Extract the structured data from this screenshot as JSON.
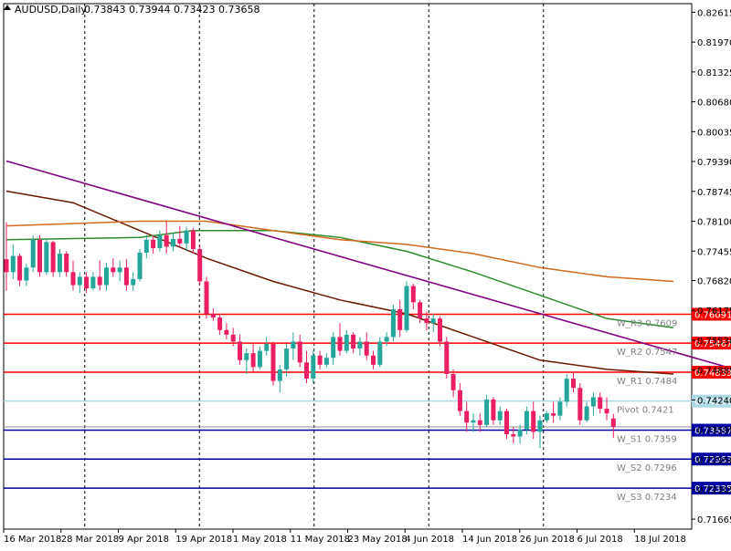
{
  "header": {
    "symbol": "AUDUSD,Daily",
    "ohlc": "0.73843 0.73944 0.73423 0.73658"
  },
  "colors": {
    "background": "#ffffff",
    "bull_candle": "#26a69a",
    "bear_candle": "#e91e63",
    "resistance": "#ff0000",
    "support": "#0000a0",
    "pivot": "#add8e6",
    "trendline": "#800080",
    "ma_fast": "#6b1a00",
    "ma_mid": "#2e8b2e",
    "ma_slow": "#d2691e",
    "grid": "#000000",
    "axis_text": "#000000",
    "level_text": "#808080",
    "current_price": "#808080"
  },
  "chart_data": {
    "type": "candlestick",
    "symbol": "AUDUSD",
    "timeframe": "Daily",
    "ohlc_last": {
      "open": 0.73843,
      "high": 0.73944,
      "low": 0.73423,
      "close": 0.73658
    },
    "y_axis_ticks": [
      "0.82615",
      "0.81970",
      "0.81325",
      "0.80680",
      "0.80035",
      "0.79390",
      "0.78745",
      "0.78100",
      "0.77455",
      "0.76820",
      "0.76175",
      "0.75530",
      "0.74885",
      "0.74240",
      "0.73595",
      "0.72950",
      "0.72305",
      "0.71665"
    ],
    "x_axis_ticks": [
      "16 Mar 2018",
      "28 Mar 2018",
      "9 Apr 2018",
      "19 Apr 2018",
      "1 May 2018",
      "11 May 2018",
      "23 May 2018",
      "4 Jun 2018",
      "14 Jun 2018",
      "26 Jun 2018",
      "6 Jul 2018",
      "18 Jul 2018"
    ],
    "ylim": [
      0.7145,
      0.828
    ],
    "grid": "vertical-dashed",
    "levels": [
      {
        "name": "W_R3",
        "label": "W_R3 0.7609",
        "value": 0.76091,
        "price_label": "0.76091",
        "kind": "resistance"
      },
      {
        "name": "W_R2",
        "label": "W_R2 0.7547",
        "value": 0.75467,
        "price_label": "0.75467",
        "kind": "resistance"
      },
      {
        "name": "W_R1",
        "label": "W_R1 0.7484",
        "value": 0.74839,
        "price_label": "0.74839",
        "kind": "resistance"
      },
      {
        "name": "Pivot",
        "label": "Pivot 0.7421",
        "value": 0.74215,
        "price_label": "0.74215",
        "kind": "pivot"
      },
      {
        "name": "W_S1",
        "label": "W_S1 0.7359",
        "value": 0.73587,
        "price_label": "0.73587",
        "kind": "support"
      },
      {
        "name": "W_S2",
        "label": "W_S2 0.7296",
        "value": 0.72963,
        "price_label": "0.72963",
        "kind": "support"
      },
      {
        "name": "W_S3",
        "label": "W_S3 0.7234",
        "value": 0.72335,
        "price_label": "0.72335",
        "kind": "support"
      }
    ],
    "current_price": 0.73658,
    "candles": [
      {
        "o": 0.7728,
        "h": 0.7808,
        "l": 0.766,
        "c": 0.77
      },
      {
        "o": 0.77,
        "h": 0.776,
        "l": 0.7685,
        "c": 0.7735
      },
      {
        "o": 0.7735,
        "h": 0.774,
        "l": 0.767,
        "c": 0.7682
      },
      {
        "o": 0.7682,
        "h": 0.7718,
        "l": 0.767,
        "c": 0.771
      },
      {
        "o": 0.771,
        "h": 0.778,
        "l": 0.77,
        "c": 0.777
      },
      {
        "o": 0.777,
        "h": 0.778,
        "l": 0.769,
        "c": 0.77
      },
      {
        "o": 0.77,
        "h": 0.7772,
        "l": 0.7695,
        "c": 0.7765
      },
      {
        "o": 0.7765,
        "h": 0.7768,
        "l": 0.769,
        "c": 0.77
      },
      {
        "o": 0.77,
        "h": 0.775,
        "l": 0.769,
        "c": 0.774
      },
      {
        "o": 0.774,
        "h": 0.7745,
        "l": 0.769,
        "c": 0.77
      },
      {
        "o": 0.77,
        "h": 0.7725,
        "l": 0.766,
        "c": 0.7672
      },
      {
        "o": 0.7672,
        "h": 0.77,
        "l": 0.7655,
        "c": 0.769
      },
      {
        "o": 0.769,
        "h": 0.77,
        "l": 0.7655,
        "c": 0.7665
      },
      {
        "o": 0.7665,
        "h": 0.77,
        "l": 0.766,
        "c": 0.769
      },
      {
        "o": 0.769,
        "h": 0.7725,
        "l": 0.766,
        "c": 0.7672
      },
      {
        "o": 0.7672,
        "h": 0.772,
        "l": 0.766,
        "c": 0.771
      },
      {
        "o": 0.771,
        "h": 0.773,
        "l": 0.769,
        "c": 0.77
      },
      {
        "o": 0.77,
        "h": 0.7725,
        "l": 0.768,
        "c": 0.771
      },
      {
        "o": 0.771,
        "h": 0.7728,
        "l": 0.766,
        "c": 0.7672
      },
      {
        "o": 0.7672,
        "h": 0.77,
        "l": 0.766,
        "c": 0.7685
      },
      {
        "o": 0.7685,
        "h": 0.775,
        "l": 0.768,
        "c": 0.7742
      },
      {
        "o": 0.7742,
        "h": 0.778,
        "l": 0.773,
        "c": 0.777
      },
      {
        "o": 0.777,
        "h": 0.778,
        "l": 0.774,
        "c": 0.7752
      },
      {
        "o": 0.7752,
        "h": 0.779,
        "l": 0.7745,
        "c": 0.778
      },
      {
        "o": 0.778,
        "h": 0.781,
        "l": 0.774,
        "c": 0.7755
      },
      {
        "o": 0.7755,
        "h": 0.7785,
        "l": 0.7745,
        "c": 0.7772
      },
      {
        "o": 0.7772,
        "h": 0.78,
        "l": 0.7755,
        "c": 0.7762
      },
      {
        "o": 0.7762,
        "h": 0.7798,
        "l": 0.7745,
        "c": 0.779
      },
      {
        "o": 0.779,
        "h": 0.7795,
        "l": 0.774,
        "c": 0.775
      },
      {
        "o": 0.775,
        "h": 0.776,
        "l": 0.7672,
        "c": 0.768
      },
      {
        "o": 0.768,
        "h": 0.769,
        "l": 0.76,
        "c": 0.761
      },
      {
        "o": 0.761,
        "h": 0.7622,
        "l": 0.7595,
        "c": 0.7602
      },
      {
        "o": 0.7602,
        "h": 0.761,
        "l": 0.7565,
        "c": 0.7575
      },
      {
        "o": 0.7575,
        "h": 0.759,
        "l": 0.7555,
        "c": 0.7565
      },
      {
        "o": 0.7565,
        "h": 0.758,
        "l": 0.754,
        "c": 0.755
      },
      {
        "o": 0.755,
        "h": 0.7565,
        "l": 0.75,
        "c": 0.751
      },
      {
        "o": 0.751,
        "h": 0.7535,
        "l": 0.748,
        "c": 0.7525
      },
      {
        "o": 0.7525,
        "h": 0.7545,
        "l": 0.7485,
        "c": 0.7495
      },
      {
        "o": 0.7495,
        "h": 0.754,
        "l": 0.749,
        "c": 0.753
      },
      {
        "o": 0.753,
        "h": 0.756,
        "l": 0.752,
        "c": 0.7545
      },
      {
        "o": 0.7545,
        "h": 0.755,
        "l": 0.7455,
        "c": 0.7465
      },
      {
        "o": 0.7465,
        "h": 0.75,
        "l": 0.744,
        "c": 0.749
      },
      {
        "o": 0.749,
        "h": 0.7545,
        "l": 0.7475,
        "c": 0.7535
      },
      {
        "o": 0.7535,
        "h": 0.757,
        "l": 0.751,
        "c": 0.755
      },
      {
        "o": 0.755,
        "h": 0.7565,
        "l": 0.7495,
        "c": 0.7505
      },
      {
        "o": 0.7505,
        "h": 0.753,
        "l": 0.746,
        "c": 0.747
      },
      {
        "o": 0.747,
        "h": 0.753,
        "l": 0.746,
        "c": 0.752
      },
      {
        "o": 0.752,
        "h": 0.753,
        "l": 0.749,
        "c": 0.75
      },
      {
        "o": 0.75,
        "h": 0.7525,
        "l": 0.7495,
        "c": 0.7515
      },
      {
        "o": 0.7515,
        "h": 0.757,
        "l": 0.75,
        "c": 0.756
      },
      {
        "o": 0.756,
        "h": 0.759,
        "l": 0.752,
        "c": 0.753
      },
      {
        "o": 0.753,
        "h": 0.7575,
        "l": 0.7525,
        "c": 0.7565
      },
      {
        "o": 0.7565,
        "h": 0.757,
        "l": 0.7525,
        "c": 0.7535
      },
      {
        "o": 0.7535,
        "h": 0.756,
        "l": 0.752,
        "c": 0.755
      },
      {
        "o": 0.755,
        "h": 0.757,
        "l": 0.751,
        "c": 0.752
      },
      {
        "o": 0.752,
        "h": 0.753,
        "l": 0.749,
        "c": 0.75
      },
      {
        "o": 0.75,
        "h": 0.756,
        "l": 0.7495,
        "c": 0.755
      },
      {
        "o": 0.755,
        "h": 0.757,
        "l": 0.754,
        "c": 0.756
      },
      {
        "o": 0.756,
        "h": 0.763,
        "l": 0.755,
        "c": 0.762
      },
      {
        "o": 0.762,
        "h": 0.764,
        "l": 0.756,
        "c": 0.7575
      },
      {
        "o": 0.7575,
        "h": 0.768,
        "l": 0.757,
        "c": 0.767
      },
      {
        "o": 0.767,
        "h": 0.7675,
        "l": 0.762,
        "c": 0.7635
      },
      {
        "o": 0.7635,
        "h": 0.764,
        "l": 0.759,
        "c": 0.76
      },
      {
        "o": 0.76,
        "h": 0.7615,
        "l": 0.7575,
        "c": 0.759
      },
      {
        "o": 0.759,
        "h": 0.761,
        "l": 0.757,
        "c": 0.76
      },
      {
        "o": 0.76,
        "h": 0.7605,
        "l": 0.754,
        "c": 0.755
      },
      {
        "o": 0.755,
        "h": 0.756,
        "l": 0.747,
        "c": 0.748
      },
      {
        "o": 0.748,
        "h": 0.749,
        "l": 0.743,
        "c": 0.7445
      },
      {
        "o": 0.7445,
        "h": 0.746,
        "l": 0.739,
        "c": 0.74
      },
      {
        "o": 0.74,
        "h": 0.742,
        "l": 0.7355,
        "c": 0.7375
      },
      {
        "o": 0.7375,
        "h": 0.7395,
        "l": 0.7355,
        "c": 0.738
      },
      {
        "o": 0.738,
        "h": 0.7395,
        "l": 0.7355,
        "c": 0.737
      },
      {
        "o": 0.737,
        "h": 0.7435,
        "l": 0.7365,
        "c": 0.7425
      },
      {
        "o": 0.7425,
        "h": 0.743,
        "l": 0.737,
        "c": 0.738
      },
      {
        "o": 0.738,
        "h": 0.741,
        "l": 0.737,
        "c": 0.74
      },
      {
        "o": 0.74,
        "h": 0.7405,
        "l": 0.734,
        "c": 0.735
      },
      {
        "o": 0.735,
        "h": 0.7365,
        "l": 0.733,
        "c": 0.7345
      },
      {
        "o": 0.7345,
        "h": 0.737,
        "l": 0.733,
        "c": 0.736
      },
      {
        "o": 0.736,
        "h": 0.741,
        "l": 0.735,
        "c": 0.74
      },
      {
        "o": 0.74,
        "h": 0.742,
        "l": 0.734,
        "c": 0.7355
      },
      {
        "o": 0.7355,
        "h": 0.739,
        "l": 0.732,
        "c": 0.738
      },
      {
        "o": 0.738,
        "h": 0.74,
        "l": 0.7375,
        "c": 0.7395
      },
      {
        "o": 0.7395,
        "h": 0.742,
        "l": 0.7375,
        "c": 0.739
      },
      {
        "o": 0.739,
        "h": 0.743,
        "l": 0.738,
        "c": 0.742
      },
      {
        "o": 0.742,
        "h": 0.748,
        "l": 0.741,
        "c": 0.747
      },
      {
        "o": 0.747,
        "h": 0.7485,
        "l": 0.744,
        "c": 0.745
      },
      {
        "o": 0.745,
        "h": 0.746,
        "l": 0.737,
        "c": 0.738
      },
      {
        "o": 0.738,
        "h": 0.742,
        "l": 0.7375,
        "c": 0.741
      },
      {
        "o": 0.741,
        "h": 0.744,
        "l": 0.739,
        "c": 0.743
      },
      {
        "o": 0.743,
        "h": 0.744,
        "l": 0.7395,
        "c": 0.7405
      },
      {
        "o": 0.7405,
        "h": 0.743,
        "l": 0.738,
        "c": 0.7395
      },
      {
        "o": 0.7384,
        "h": 0.7394,
        "l": 0.7342,
        "c": 0.7366
      }
    ],
    "moving_averages": [
      {
        "name": "ma_fast",
        "color": "#6b1a00",
        "points": [
          [
            0,
            0.7875
          ],
          [
            10,
            0.785
          ],
          [
            20,
            0.779
          ],
          [
            30,
            0.773
          ],
          [
            40,
            0.768
          ],
          [
            50,
            0.764
          ],
          [
            60,
            0.761
          ],
          [
            70,
            0.756
          ],
          [
            80,
            0.751
          ],
          [
            90,
            0.749
          ],
          [
            100,
            0.748
          ]
        ]
      },
      {
        "name": "ma_mid",
        "color": "#2e8b2e",
        "points": [
          [
            0,
            0.777
          ],
          [
            20,
            0.7775
          ],
          [
            28,
            0.779
          ],
          [
            40,
            0.779
          ],
          [
            50,
            0.7775
          ],
          [
            60,
            0.7745
          ],
          [
            70,
            0.77
          ],
          [
            80,
            0.765
          ],
          [
            90,
            0.76
          ],
          [
            100,
            0.758
          ]
        ]
      },
      {
        "name": "ma_slow",
        "color": "#d2691e",
        "points": [
          [
            0,
            0.78
          ],
          [
            20,
            0.781
          ],
          [
            30,
            0.781
          ],
          [
            40,
            0.779
          ],
          [
            50,
            0.777
          ],
          [
            60,
            0.776
          ],
          [
            70,
            0.774
          ],
          [
            80,
            0.771
          ],
          [
            90,
            0.769
          ],
          [
            100,
            0.768
          ]
        ]
      },
      {
        "name": "trendline",
        "color": "#800080",
        "points": [
          [
            0,
            0.794
          ],
          [
            108,
            0.7495
          ]
        ]
      }
    ]
  }
}
